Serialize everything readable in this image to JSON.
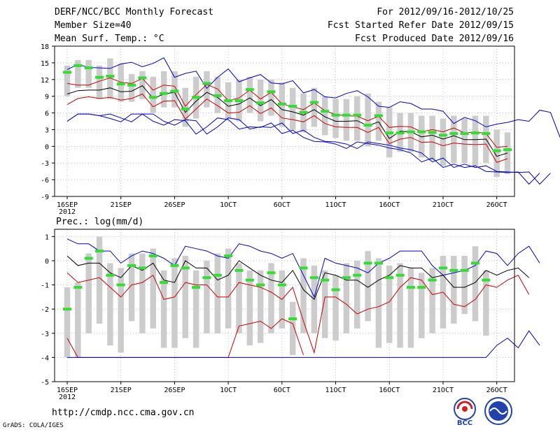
{
  "header": {
    "title": "DERF/NCC/BCC Monthly Forecast",
    "member_size": "Member Size=40",
    "variable": "Mean Surf. Temp.: °C",
    "period": "For 2012/09/16-2012/10/25",
    "start_date": "Fcst Started Refer Date 2012/09/15",
    "produced_date": "Fcst Produced Date 2012/09/16"
  },
  "footer": {
    "url": "http://cmdp.ncc.cma.gov.cn",
    "grads": "GrADS: COLA/IGES",
    "logo1_text": "BCC"
  },
  "colors": {
    "envelope": "#0000cc",
    "percentile": "#cc0000",
    "median": "#000000",
    "obs": "#33dd33",
    "box": "#cccccc"
  },
  "chart_data": [
    {
      "type": "line",
      "title": "Mean Surf. Temp.: °C",
      "ylim": [
        -9,
        18
      ],
      "yticks": [
        -9,
        -6,
        -3,
        0,
        3,
        6,
        9,
        12,
        15,
        18
      ],
      "xticks": [
        {
          "day": 1,
          "label": "16SEP",
          "sub": "2012"
        },
        {
          "day": 6,
          "label": "21SEP"
        },
        {
          "day": 11,
          "label": "26SEP"
        },
        {
          "day": 16,
          "label": "1OCT"
        },
        {
          "day": 21,
          "label": "6OCT"
        },
        {
          "day": 26,
          "label": "11OCT"
        },
        {
          "day": 31,
          "label": "16OCT"
        },
        {
          "day": 36,
          "label": "21OCT"
        },
        {
          "day": 41,
          "label": "26OCT"
        }
      ],
      "series": [
        {
          "name": "max",
          "values": [
            4.5,
            5.8,
            5.8,
            5.5,
            5.8,
            5.1,
            4.4,
            5.8,
            5.8,
            4.5,
            3.8,
            4.8,
            4.6,
            2.2,
            3.5,
            5.1,
            4.8,
            3.1,
            3.5,
            3.4,
            4.2,
            2.3,
            2.9,
            1.6,
            0.9,
            0.8,
            0.4,
            -0.4,
            0.8,
            0.5,
            0.2,
            -0.3,
            -0.6,
            -1.2,
            -2.8,
            -2.1,
            -3.8,
            -3.2,
            -3.8,
            -3.5,
            -4.5,
            -4.6,
            -4.7,
            -4.6,
            -6.8,
            -4.8
          ]
        },
        {
          "name": "upper-envelope",
          "values": [
            13.8,
            14.7,
            14.2,
            14.1,
            14.0,
            14.8,
            15.1,
            14.3,
            14.9,
            15.9,
            12.4,
            13.1,
            13.5,
            10.4,
            12.4,
            13.9,
            11.6,
            12.3,
            12.9,
            11.4,
            11.2,
            11.8,
            9.6,
            10.2,
            8.9,
            8.7,
            9.5,
            10.0,
            8.9,
            7.2,
            7.0,
            8.0,
            7.7,
            6.7,
            6.7,
            6.3,
            4.1,
            5.2,
            4.6,
            3.5,
            4.0,
            4.3,
            4.8,
            4.5,
            6.5,
            6.1,
            1.1,
            1.1
          ]
        },
        {
          "name": "p75",
          "values": [
            11.3,
            11.0,
            11.0,
            11.7,
            12.3,
            11.5,
            11.3,
            12.2,
            10.1,
            11.0,
            10.8,
            7.2,
            9.3,
            11.1,
            10.3,
            8.2,
            8.7,
            10.1,
            8.5,
            9.7,
            7.6,
            7.1,
            6.6,
            7.8,
            6.4,
            5.7,
            5.5,
            5.4,
            4.6,
            5.4,
            3.4,
            3.6,
            3.5,
            2.6,
            3.0,
            2.6,
            3.3,
            2.4,
            2.6,
            2.3,
            -0.2,
            0.0
          ]
        },
        {
          "name": "median",
          "values": [
            9.4,
            10.0,
            10.1,
            10.1,
            10.5,
            9.8,
            9.9,
            10.9,
            8.6,
            9.4,
            9.7,
            6.1,
            8.1,
            9.7,
            8.8,
            7.2,
            7.6,
            8.7,
            7.3,
            8.4,
            6.6,
            6.2,
            5.6,
            6.6,
            5.3,
            4.5,
            4.5,
            4.6,
            3.7,
            4.4,
            1.4,
            2.7,
            2.6,
            1.7,
            2.0,
            1.3,
            1.9,
            1.2,
            1.2,
            1.3,
            -1.8,
            -1.2
          ]
        },
        {
          "name": "p25",
          "values": [
            7.5,
            8.6,
            8.9,
            8.6,
            8.8,
            8.3,
            8.6,
            9.4,
            7.1,
            8.1,
            8.2,
            4.9,
            6.7,
            8.5,
            7.3,
            6.0,
            6.1,
            7.3,
            5.9,
            6.9,
            5.1,
            4.8,
            4.4,
            5.5,
            4.1,
            3.5,
            3.4,
            3.4,
            2.5,
            3.4,
            0.5,
            1.3,
            1.6,
            0.7,
            0.8,
            0.1,
            0.6,
            0.4,
            0.3,
            0.4,
            -2.9,
            -2.2
          ]
        },
        {
          "name": "min-envelope",
          "values": [
            4.5,
            5.8,
            5.8,
            5.5,
            5.0,
            4.4,
            5.8,
            5.8,
            4.5,
            3.8,
            4.8,
            4.6,
            2.2,
            3.5,
            5.1,
            4.8,
            3.1,
            3.5,
            3.4,
            4.2,
            2.3,
            2.9,
            1.6,
            0.9,
            0.8,
            0.4,
            -0.4,
            0.8,
            0.5,
            0.2,
            -0.3,
            -0.6,
            -1.2,
            -2.8,
            -2.1,
            -3.8,
            -3.2,
            -3.8,
            -3.5,
            -4.5,
            -4.6,
            -4.7,
            -4.6,
            -6.8,
            -4.8
          ]
        }
      ],
      "obs": [
        13.3,
        14.5,
        14.1,
        12.4,
        12.6,
        11.2,
        11.0,
        12.3,
        8.8,
        9.5,
        9.9,
        6.7,
        8.8,
        11.3,
        9.1,
        8.2,
        8.2,
        10.2,
        7.8,
        9.8,
        7.6,
        7.2,
        6.1,
        7.9,
        6.3,
        5.6,
        5.6,
        5.6,
        3.8,
        5.5,
        2.4,
        2.4,
        2.6,
        2.6,
        2.5,
        2.0,
        2.3,
        2.3,
        2.4,
        2.3,
        -0.8,
        -0.6
      ],
      "box_high": [
        14.5,
        15.5,
        15.5,
        14.5,
        15.8,
        14.8,
        13.0,
        13.5,
        12.5,
        13.5,
        13.5,
        10.5,
        12.5,
        13.5,
        12.5,
        11.5,
        12.0,
        12.5,
        12.0,
        12.0,
        11.5,
        10.5,
        9.5,
        10.5,
        9.0,
        8.5,
        8.5,
        9.0,
        9.5,
        8.0,
        7.0,
        6.0,
        6.0,
        5.5,
        5.5,
        5.0,
        5.5,
        5.0,
        5.5,
        5.5,
        3.0,
        2.5
      ],
      "box_low": [
        9.0,
        10.5,
        10.5,
        8.5,
        8.5,
        8.0,
        8.0,
        8.5,
        6.0,
        7.0,
        7.0,
        3.5,
        5.0,
        7.0,
        6.0,
        5.0,
        4.5,
        6.0,
        4.5,
        5.5,
        3.5,
        3.0,
        2.5,
        3.5,
        2.0,
        1.5,
        1.0,
        1.0,
        0.0,
        1.0,
        -2.0,
        -1.0,
        -1.0,
        -2.0,
        -2.5,
        -3.5,
        -3.0,
        -3.0,
        -3.5,
        -3.0,
        -5.5,
        -5.0
      ]
    },
    {
      "type": "line",
      "title": "Prec.: log(mm/d)",
      "ylim": [
        -5,
        1.3
      ],
      "yticks": [
        -5,
        -4,
        -3,
        -2,
        -1,
        0,
        1
      ],
      "xticks": [
        {
          "day": 1,
          "label": "16SEP",
          "sub": "2012"
        },
        {
          "day": 6,
          "label": "21SEP"
        },
        {
          "day": 11,
          "label": "26SEP"
        },
        {
          "day": 16,
          "label": "1OCT"
        },
        {
          "day": 21,
          "label": "6OCT"
        },
        {
          "day": 26,
          "label": "11OCT"
        },
        {
          "day": 31,
          "label": "16OCT"
        },
        {
          "day": 36,
          "label": "21OCT"
        },
        {
          "day": 41,
          "label": "26OCT"
        }
      ],
      "series": [
        {
          "name": "upper-envelope",
          "values": [
            0.9,
            0.7,
            0.7,
            0.4,
            0.4,
            -0.1,
            0.2,
            0.4,
            0.3,
            0.1,
            -0.2,
            0.6,
            0.5,
            0.4,
            0.2,
            0.1,
            0.7,
            0.6,
            0.4,
            0.3,
            0.1,
            0.3,
            -0.6,
            -1.5,
            0.1,
            -0.1,
            -0.2,
            -0.3,
            -0.5,
            -0.1,
            0.1,
            0.4,
            0.4,
            0.4,
            -0.2,
            -0.6,
            -0.5,
            -0.4,
            -0.2,
            0.4,
            0.3,
            -0.2,
            0.3,
            0.6,
            -0.1
          ]
        },
        {
          "name": "median",
          "values": [
            0.2,
            -0.2,
            -0.1,
            -0.1,
            -0.5,
            -0.7,
            -0.2,
            -0.4,
            -0.1,
            -0.8,
            -0.9,
            0.0,
            -0.3,
            -0.3,
            -0.8,
            -0.6,
            0.0,
            -0.3,
            -0.6,
            -0.8,
            -0.9,
            -0.4,
            -1.2,
            -1.6,
            -0.5,
            -0.6,
            -0.8,
            -0.8,
            -1.1,
            -0.8,
            -0.6,
            -0.2,
            -0.3,
            -0.3,
            -0.7,
            -0.6,
            -1.1,
            -1.1,
            -0.9,
            -0.4,
            -0.6,
            -0.4,
            -0.3,
            -0.7
          ]
        },
        {
          "name": "p25",
          "values": [
            -0.5,
            -0.9,
            -0.8,
            -0.7,
            -1.1,
            -1.5,
            -1.0,
            -0.9,
            -0.6,
            -1.6,
            -1.5,
            -0.9,
            -1.0,
            -1.0,
            -1.5,
            -1.5,
            -0.9,
            -1.0,
            -1.1,
            -1.3,
            -1.6,
            -1.1,
            -2.5,
            -3.8,
            -1.5,
            -1.5,
            -1.8,
            -2.2,
            -2.0,
            -1.9,
            -1.7,
            -1.1,
            -0.7,
            -0.8,
            -1.4,
            -1.3,
            -1.8,
            -1.9,
            -1.6,
            -1.0,
            -1.1,
            -0.8,
            -0.6,
            -1.4
          ]
        },
        {
          "name": "p10",
          "values": [
            -3.2,
            -4.0,
            -4.0,
            -4.0,
            -4.0,
            -4.0,
            -4.0,
            -4.0,
            -4.0,
            -4.0,
            -4.0,
            -4.0,
            -4.0,
            -4.0,
            -4.0,
            -4.0,
            -2.7,
            -2.6,
            -2.5,
            -2.8,
            -2.4,
            -2.6,
            -3.9
          ]
        },
        {
          "name": "min",
          "values": [
            -4.0,
            -4.0,
            -4.0,
            -4.0,
            -4.0,
            -4.0,
            -4.0,
            -4.0,
            -4.0,
            -4.0,
            -4.0,
            -4.0,
            -4.0,
            -4.0,
            -4.0,
            -4.0,
            -4.0,
            -4.0,
            -4.0,
            -4.0,
            -4.0,
            -4.0,
            -4.0,
            -4.0,
            -4.0,
            -4.0,
            -4.0,
            -4.0,
            -4.0,
            -4.0,
            -4.0,
            -4.0,
            -4.0,
            -4.0,
            -4.0,
            -4.0,
            -4.0,
            -4.0,
            -4.0,
            -4.0,
            -3.5,
            -3.2,
            -3.6,
            -2.9,
            -3.5
          ]
        }
      ],
      "obs": [
        -2.0,
        -1.1,
        0.1,
        0.4,
        -0.6,
        -1.0,
        -0.2,
        -0.3,
        0.2,
        -0.9,
        -0.2,
        -0.3,
        -1.1,
        -0.7,
        -0.6,
        0.2,
        -0.4,
        -0.8,
        -1.0,
        -0.5,
        -1.0,
        -2.4,
        -0.3,
        -0.7,
        -0.8,
        -1.2,
        -0.7,
        -0.6,
        -0.1,
        -0.1,
        -0.7,
        -0.6,
        -1.1,
        -1.1,
        -0.8,
        -0.3,
        -0.4,
        -0.4,
        -0.1,
        -0.8
      ],
      "box_high": [
        -1.1,
        -0.9,
        0.3,
        1.0,
        -0.1,
        -0.3,
        0.3,
        0.3,
        0.5,
        -0.4,
        0.1,
        0.2,
        -0.4,
        0.0,
        0.3,
        0.5,
        -0.1,
        -0.4,
        -0.4,
        -0.1,
        -0.4,
        -1.7,
        0.1,
        -0.2,
        -0.4,
        -0.6,
        -0.1,
        0.0,
        0.4,
        0.1,
        -0.2,
        -0.1,
        -0.3,
        -0.5,
        -0.3,
        0.2,
        0.2,
        0.2,
        0.6,
        -0.4
      ],
      "box_low": [
        -4.0,
        -4.0,
        -3.0,
        -2.6,
        -3.5,
        -3.8,
        -2.5,
        -3.0,
        -2.8,
        -3.6,
        -3.6,
        -3.2,
        -3.6,
        -3.0,
        -3.0,
        -2.8,
        -3.0,
        -3.5,
        -3.4,
        -3.0,
        -2.8,
        -3.9,
        -3.0,
        -3.0,
        -3.2,
        -3.3,
        -3.0,
        -2.8,
        -2.5,
        -3.6,
        -3.4,
        -3.6,
        -3.6,
        -3.2,
        -3.0,
        -2.8,
        -2.6,
        -2.2,
        -2.5,
        -3.1
      ]
    }
  ]
}
